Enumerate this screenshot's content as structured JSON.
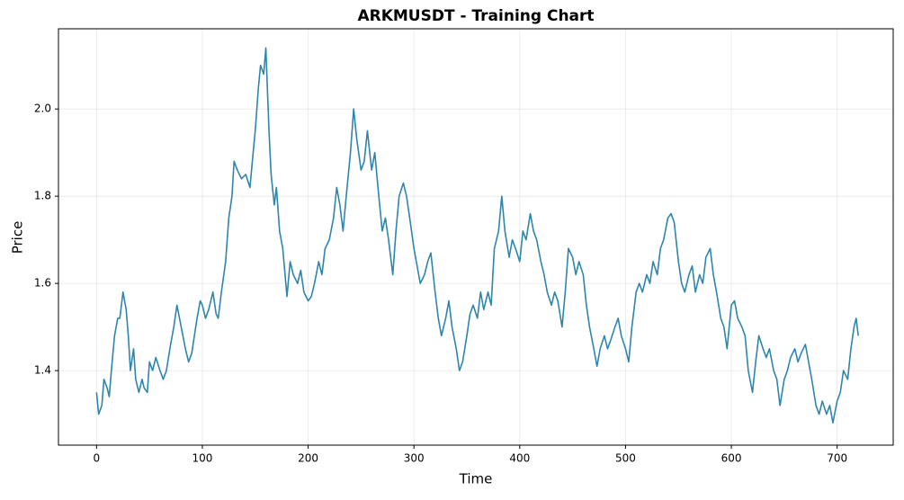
{
  "chart_data": {
    "type": "line",
    "title": "ARKMUSDT - Training Chart",
    "xlabel": "Time",
    "ylabel": "Price",
    "x": [
      0,
      2,
      5,
      7,
      10,
      12,
      14,
      17,
      20,
      22,
      25,
      28,
      30,
      32,
      35,
      37,
      40,
      43,
      45,
      48,
      50,
      53,
      56,
      60,
      63,
      66,
      70,
      73,
      76,
      80,
      84,
      87,
      90,
      95,
      98,
      100,
      103,
      106,
      110,
      113,
      115,
      118,
      122,
      125,
      128,
      130,
      133,
      137,
      141,
      145,
      148,
      150,
      153,
      155,
      158,
      160,
      163,
      165,
      168,
      170,
      173,
      176,
      180,
      183,
      186,
      190,
      193,
      196,
      200,
      203,
      206,
      210,
      213,
      216,
      220,
      224,
      227,
      230,
      233,
      236,
      240,
      243,
      246,
      250,
      253,
      256,
      260,
      263,
      266,
      270,
      273,
      276,
      280,
      283,
      286,
      290,
      293,
      296,
      300,
      303,
      306,
      310,
      313,
      316,
      320,
      323,
      326,
      330,
      333,
      336,
      340,
      343,
      346,
      350,
      353,
      356,
      360,
      363,
      366,
      370,
      373,
      376,
      380,
      383,
      386,
      390,
      393,
      396,
      400,
      403,
      406,
      410,
      413,
      416,
      420,
      423,
      426,
      430,
      433,
      436,
      440,
      443,
      446,
      450,
      453,
      456,
      460,
      463,
      466,
      470,
      473,
      476,
      480,
      483,
      486,
      490,
      493,
      496,
      500,
      503,
      506,
      510,
      513,
      516,
      520,
      523,
      526,
      530,
      533,
      536,
      540,
      543,
      546,
      550,
      553,
      556,
      560,
      563,
      566,
      570,
      573,
      576,
      580,
      583,
      586,
      590,
      593,
      596,
      600,
      603,
      606,
      610,
      613,
      616,
      620,
      623,
      626,
      630,
      633,
      636,
      640,
      643,
      646,
      650,
      653,
      656,
      660,
      663,
      666,
      670,
      673,
      676,
      680,
      683,
      686,
      690,
      693,
      696,
      700,
      703,
      706,
      710,
      713,
      716,
      718,
      720
    ],
    "values": [
      1.35,
      1.3,
      1.32,
      1.38,
      1.36,
      1.34,
      1.4,
      1.48,
      1.52,
      1.52,
      1.58,
      1.54,
      1.48,
      1.4,
      1.45,
      1.38,
      1.35,
      1.38,
      1.36,
      1.35,
      1.42,
      1.4,
      1.43,
      1.4,
      1.38,
      1.4,
      1.46,
      1.5,
      1.55,
      1.5,
      1.45,
      1.42,
      1.44,
      1.52,
      1.56,
      1.55,
      1.52,
      1.54,
      1.58,
      1.53,
      1.52,
      1.58,
      1.65,
      1.75,
      1.8,
      1.88,
      1.86,
      1.84,
      1.85,
      1.82,
      1.9,
      1.95,
      2.05,
      2.1,
      2.08,
      2.14,
      1.95,
      1.85,
      1.78,
      1.82,
      1.72,
      1.68,
      1.57,
      1.65,
      1.62,
      1.6,
      1.63,
      1.58,
      1.56,
      1.57,
      1.6,
      1.65,
      1.62,
      1.68,
      1.7,
      1.75,
      1.82,
      1.78,
      1.72,
      1.8,
      1.9,
      2.0,
      1.93,
      1.86,
      1.88,
      1.95,
      1.86,
      1.9,
      1.82,
      1.72,
      1.75,
      1.7,
      1.62,
      1.72,
      1.8,
      1.83,
      1.8,
      1.75,
      1.68,
      1.64,
      1.6,
      1.62,
      1.65,
      1.67,
      1.58,
      1.52,
      1.48,
      1.52,
      1.56,
      1.5,
      1.45,
      1.4,
      1.42,
      1.48,
      1.53,
      1.55,
      1.52,
      1.58,
      1.54,
      1.58,
      1.55,
      1.68,
      1.72,
      1.8,
      1.72,
      1.66,
      1.7,
      1.68,
      1.65,
      1.72,
      1.7,
      1.76,
      1.72,
      1.7,
      1.65,
      1.62,
      1.58,
      1.55,
      1.58,
      1.56,
      1.5,
      1.58,
      1.68,
      1.66,
      1.62,
      1.65,
      1.62,
      1.55,
      1.5,
      1.45,
      1.41,
      1.45,
      1.48,
      1.45,
      1.47,
      1.5,
      1.52,
      1.48,
      1.45,
      1.42,
      1.5,
      1.58,
      1.6,
      1.58,
      1.62,
      1.6,
      1.65,
      1.62,
      1.68,
      1.7,
      1.75,
      1.76,
      1.74,
      1.65,
      1.6,
      1.58,
      1.62,
      1.64,
      1.58,
      1.62,
      1.6,
      1.66,
      1.68,
      1.62,
      1.58,
      1.52,
      1.5,
      1.45,
      1.55,
      1.56,
      1.52,
      1.5,
      1.48,
      1.4,
      1.35,
      1.42,
      1.48,
      1.45,
      1.43,
      1.45,
      1.4,
      1.38,
      1.32,
      1.38,
      1.4,
      1.43,
      1.45,
      1.42,
      1.44,
      1.46,
      1.42,
      1.38,
      1.32,
      1.3,
      1.33,
      1.3,
      1.32,
      1.28,
      1.33,
      1.35,
      1.4,
      1.38,
      1.45,
      1.5,
      1.52,
      1.48
    ],
    "color": "#2e86ab",
    "xlim": [
      -36,
      753
    ],
    "ylim": [
      1.229,
      2.184
    ],
    "xticks": [
      0,
      100,
      200,
      300,
      400,
      500,
      600,
      700
    ],
    "yticks": [
      1.4,
      1.6,
      1.8,
      {
        "value": 2,
        "label": "2.0"
      }
    ],
    "grid": true
  }
}
